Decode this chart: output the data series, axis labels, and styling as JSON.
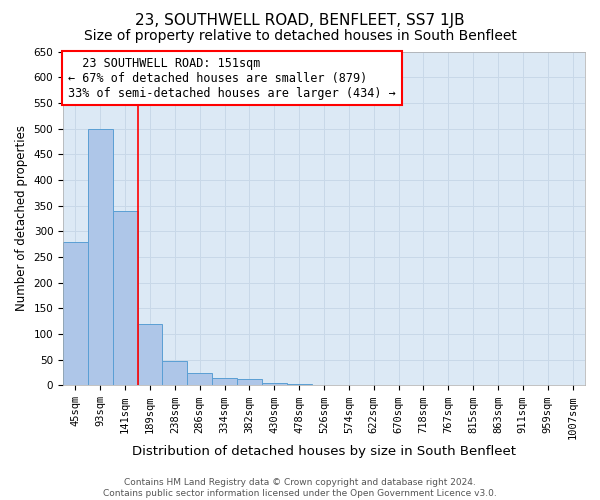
{
  "title": "23, SOUTHWELL ROAD, BENFLEET, SS7 1JB",
  "subtitle": "Size of property relative to detached houses in South Benfleet",
  "xlabel": "Distribution of detached houses by size in South Benfleet",
  "ylabel": "Number of detached properties",
  "footer_line1": "Contains HM Land Registry data © Crown copyright and database right 2024.",
  "footer_line2": "Contains public sector information licensed under the Open Government Licence v3.0.",
  "bin_labels": [
    "45sqm",
    "93sqm",
    "141sqm",
    "189sqm",
    "238sqm",
    "286sqm",
    "334sqm",
    "382sqm",
    "430sqm",
    "478sqm",
    "526sqm",
    "574sqm",
    "622sqm",
    "670sqm",
    "718sqm",
    "767sqm",
    "815sqm",
    "863sqm",
    "911sqm",
    "959sqm",
    "1007sqm"
  ],
  "bar_heights": [
    280,
    500,
    340,
    120,
    47,
    25,
    15,
    12,
    5,
    3,
    1,
    0,
    1,
    0,
    0,
    1,
    0,
    0,
    0,
    1,
    0
  ],
  "bar_color": "#aec6e8",
  "bar_edge_color": "#5a9fd4",
  "grid_color": "#c8d8e8",
  "background_color": "#dce9f5",
  "annotation_text": "  23 SOUTHWELL ROAD: 151sqm\n← 67% of detached houses are smaller (879)\n33% of semi-detached houses are larger (434) →",
  "annotation_box_color": "white",
  "annotation_box_edge_color": "red",
  "red_line_x": 2.5,
  "red_line_color": "red",
  "ylim": [
    0,
    650
  ],
  "yticks": [
    0,
    50,
    100,
    150,
    200,
    250,
    300,
    350,
    400,
    450,
    500,
    550,
    600,
    650
  ],
  "title_fontsize": 11,
  "subtitle_fontsize": 10,
  "xlabel_fontsize": 9.5,
  "ylabel_fontsize": 8.5,
  "tick_fontsize": 7.5,
  "annotation_fontsize": 8.5,
  "footer_fontsize": 6.5
}
